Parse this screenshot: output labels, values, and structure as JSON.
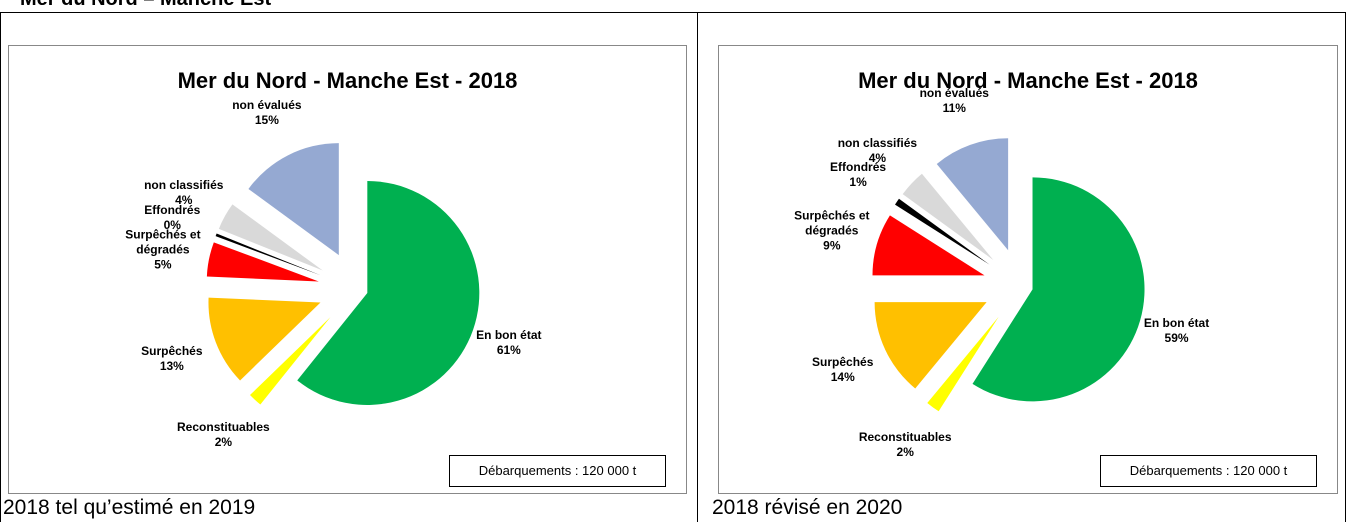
{
  "header": "Mer du Nord – Manche Est",
  "chart_data": [
    {
      "type": "pie",
      "title": "Mer du Nord - Manche Est - 2018",
      "categories": [
        "En bon état",
        "Reconstituables",
        "Surpêchés",
        "Surpêchés et dégradés",
        "Effondrés",
        "non classifiés",
        "non évalués"
      ],
      "values": [
        61,
        2,
        13,
        5,
        0.4,
        4,
        15
      ],
      "value_labels": [
        "61%",
        "2%",
        "13%",
        "5%",
        "0%",
        "4%",
        "15%"
      ],
      "colors": [
        "#00b050",
        "#ffff00",
        "#ffc000",
        "#ff0000",
        "#000000",
        "#d9d9d9",
        "#95a9d2"
      ],
      "annotation": "Débarquements : 120 000 t"
    },
    {
      "type": "pie",
      "title": "Mer du Nord - Manche Est - 2018",
      "categories": [
        "En bon état",
        "Reconstituables",
        "Surpêchés",
        "Surpêchés et dégradés",
        "Effondrés",
        "non classifiés",
        "non évalués"
      ],
      "values": [
        59,
        2,
        14,
        9,
        1,
        4,
        11
      ],
      "value_labels": [
        "59%",
        "2%",
        "14%",
        "9%",
        "1%",
        "4%",
        "11%"
      ],
      "colors": [
        "#00b050",
        "#ffff00",
        "#ffc000",
        "#ff0000",
        "#000000",
        "#d9d9d9",
        "#95a9d2"
      ],
      "annotation": "Débarquements : 120 000 t"
    }
  ],
  "captions": [
    "2018 tel qu’estimé en 2019",
    "2018 révisé en 2020"
  ]
}
